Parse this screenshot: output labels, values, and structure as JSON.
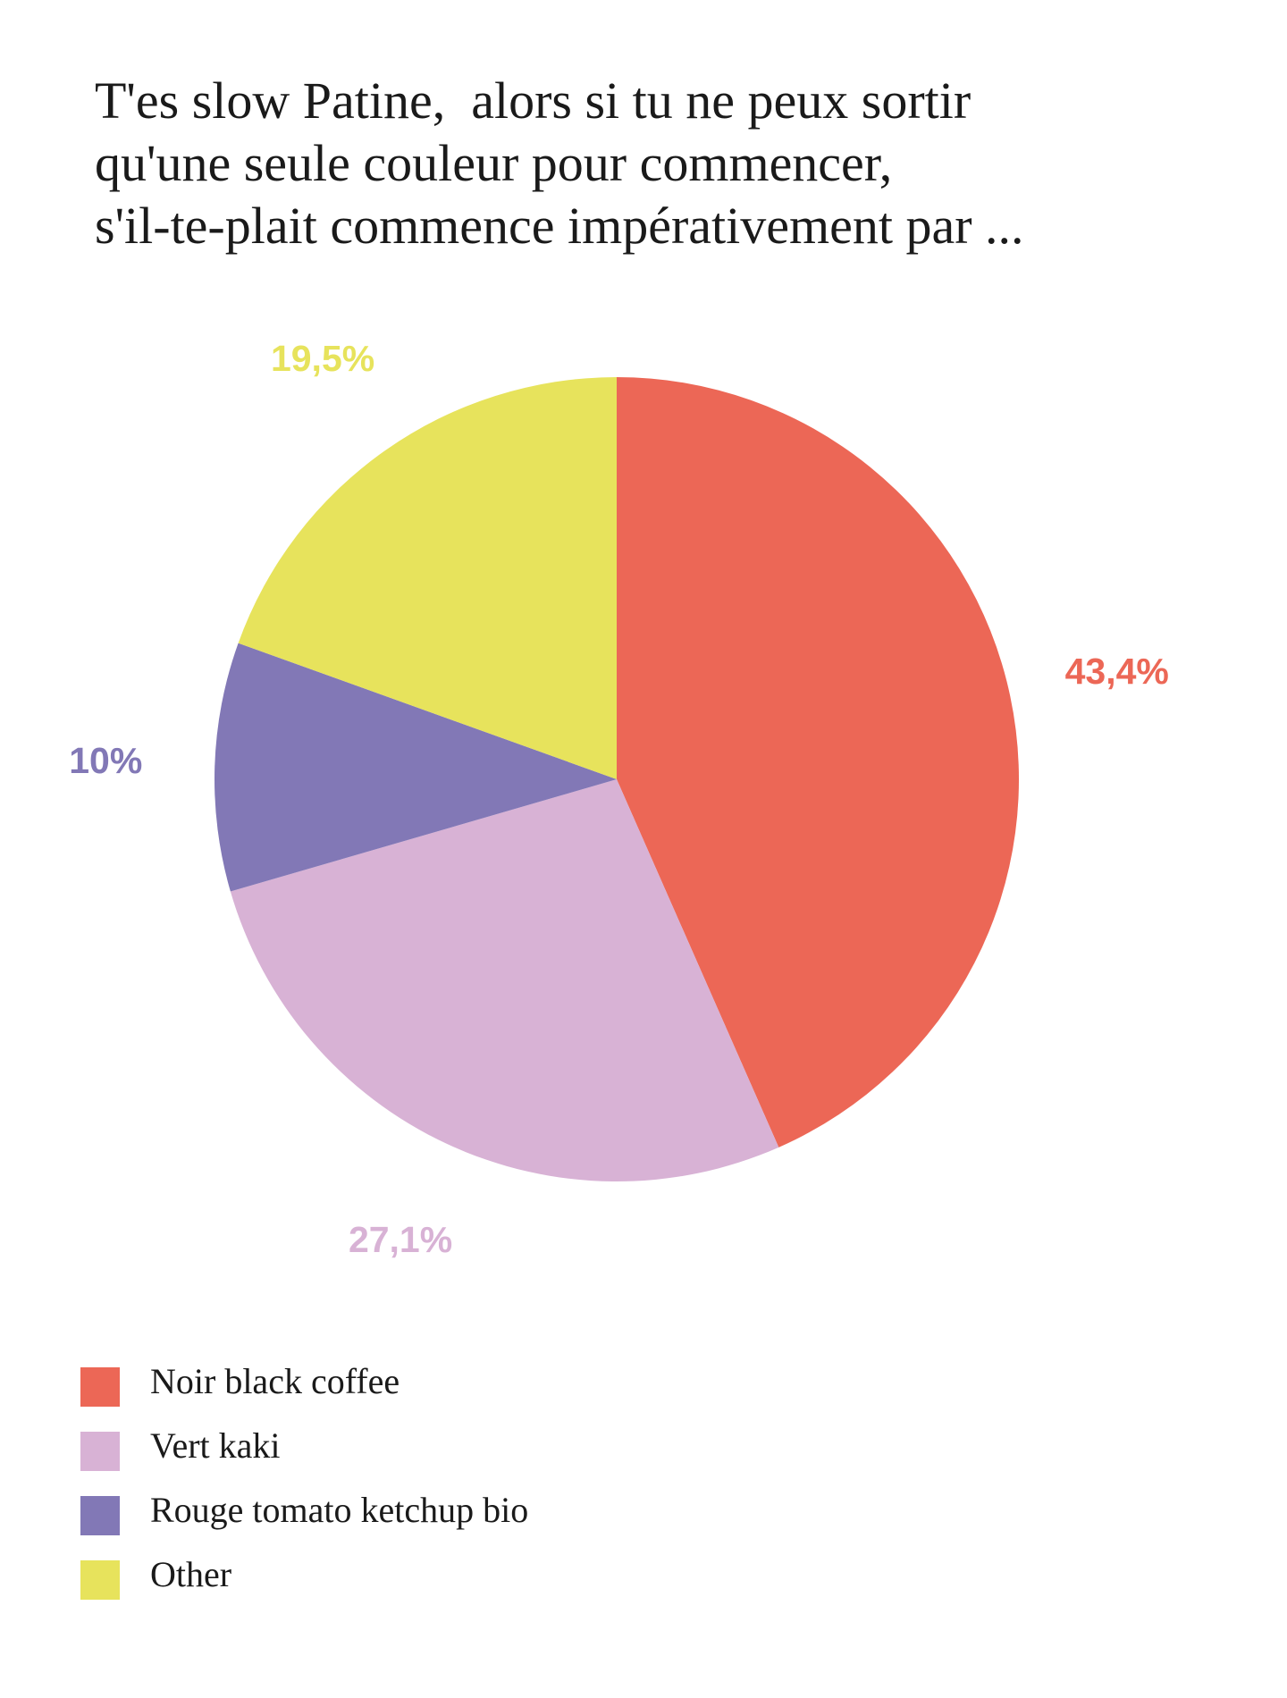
{
  "chart_data": {
    "type": "pie",
    "title_lines": [
      "T'es slow Patine,  alors si tu ne peux sortir",
      "qu'une seule couleur pour commencer,",
      "s'il-te-plait commence impérativement par ..."
    ],
    "slices": [
      {
        "label": "Noir black coffee",
        "value": 43.4,
        "display": "43,4%",
        "color": "#EC6756"
      },
      {
        "label": "Vert kaki",
        "value": 27.1,
        "display": "27,1%",
        "color": "#D8B2D5"
      },
      {
        "label": "Rouge tomato ketchup bio",
        "value": 10.0,
        "display": "10%",
        "color": "#8278B6"
      },
      {
        "label": "Other",
        "value": 19.5,
        "display": "19,5%",
        "color": "#E7E35C"
      }
    ],
    "start": "12 o'clock",
    "direction": "clockwise",
    "legend_position": "bottom-left"
  }
}
